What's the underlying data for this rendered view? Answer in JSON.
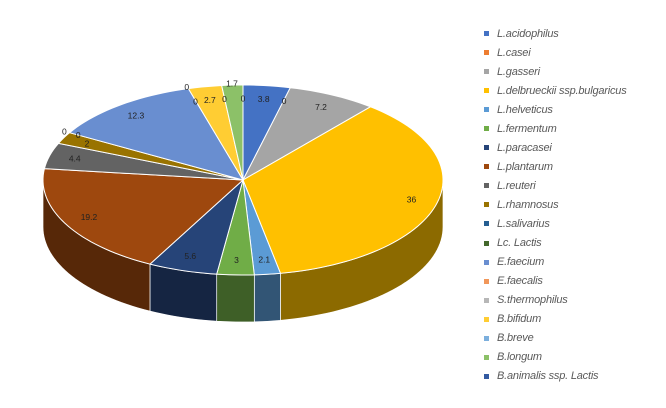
{
  "chart_data": {
    "type": "pie",
    "variant": "3d",
    "title": "",
    "legend_position": "right",
    "categories": [
      "L.acidophilus",
      "L.casei",
      "L.gasseri",
      "L.delbrueckii ssp.bulgaricus",
      "L.helveticus",
      "L.fermentum",
      "L.paracasei",
      "L.plantarum",
      "L.reuteri",
      "L.rhamnosus",
      "L.salivarius",
      "Lc. Lactis",
      "E.faecium",
      "E.faecalis",
      "S.thermophilus",
      "B.bifidum",
      "B.breve",
      "B.longum",
      "B.animalis ssp. Lactis"
    ],
    "values": [
      3.8,
      0,
      7.2,
      36,
      2.1,
      3,
      5.6,
      19.2,
      4.4,
      2,
      0,
      0,
      12.3,
      0,
      0,
      2.7,
      0,
      1.7,
      0
    ],
    "colors": [
      "#4472C4",
      "#ED7D31",
      "#A5A5A5",
      "#FFC000",
      "#5B9BD5",
      "#70AD47",
      "#264478",
      "#9E480E",
      "#636363",
      "#997300",
      "#255E91",
      "#43682B",
      "#698ED0",
      "#F1975A",
      "#B7B7B7",
      "#FFCD33",
      "#7CAFDD",
      "#8CC168",
      "#335AA1"
    ]
  }
}
